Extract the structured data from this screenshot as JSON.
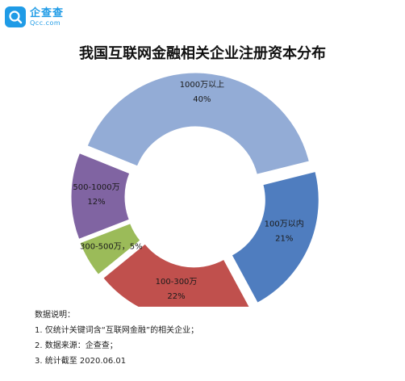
{
  "brand": {
    "name": "企查查",
    "domain": "Qcc.com",
    "color": "#1f9be6"
  },
  "chart_data": {
    "type": "donut",
    "title": "我国互联网金融相关企业注册资本分布",
    "slices": [
      {
        "label": "1000万以上",
        "value": 40,
        "value_label": "40%",
        "color": "#93acd6"
      },
      {
        "label": "100万以内",
        "value": 21,
        "value_label": "21%",
        "color": "#4f7dbf"
      },
      {
        "label": "100-300万",
        "value": 22,
        "value_label": "22%",
        "color": "#c0504d"
      },
      {
        "label": "300-500万，5%",
        "value": 5,
        "value_label": "",
        "color": "#9bbb59"
      },
      {
        "label": "500-1000万",
        "value": 12,
        "value_label": "12%",
        "color": "#8064a2"
      }
    ],
    "legend": "none"
  },
  "notes": {
    "heading": "数据说明：",
    "lines": [
      "1. 仅统计关键词含“互联网金融”的相关企业；",
      "2. 数据来源：企查查；",
      "3. 统计截至 2020.06.01"
    ]
  }
}
